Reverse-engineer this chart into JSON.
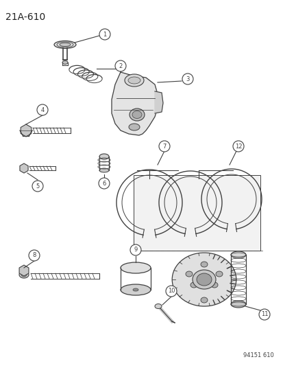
{
  "title": "21A–610",
  "background_color": "#ffffff",
  "line_color": "#404040",
  "watermark": "94151 610",
  "fig_width": 4.14,
  "fig_height": 5.33,
  "dpi": 100
}
